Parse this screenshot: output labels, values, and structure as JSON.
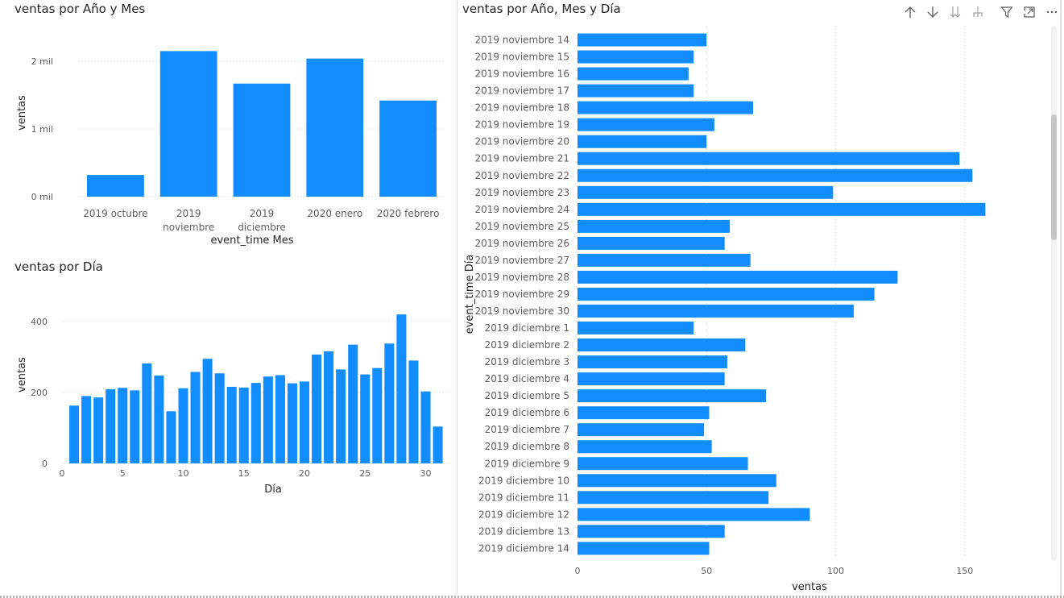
{
  "toolbar": {
    "icons": [
      "arrow-up-icon",
      "arrow-down-icon",
      "double-arrow-down-icon",
      "expand-hierarchy-icon",
      "filter-icon",
      "focus-mode-icon",
      "more-options-icon"
    ]
  },
  "colors": {
    "bar": "#118dff",
    "grid": "#d9d9d9",
    "text": "#252423",
    "axis_text": "#605e5c"
  },
  "chart_data": [
    {
      "type": "bar",
      "title": "ventas por Año y Mes",
      "categories": [
        "2019 octubre",
        "2019 noviembre",
        "2019 diciembre",
        "2020 enero",
        "2020 febrero"
      ],
      "category_lines": [
        [
          "2019 octubre"
        ],
        [
          "2019",
          "noviembre"
        ],
        [
          "2019",
          "diciembre"
        ],
        [
          "2020 enero"
        ],
        [
          "2020 febrero"
        ]
      ],
      "values": [
        320,
        2150,
        1670,
        2040,
        1420
      ],
      "xlabel": "event_time Mes",
      "ylabel": "ventas",
      "ylim": [
        0,
        2000
      ],
      "yticks": [
        0,
        1000,
        2000
      ],
      "ytick_labels": [
        "0 mil",
        "1 mil",
        "2 mil"
      ],
      "grid": true
    },
    {
      "type": "bar",
      "title": "ventas por Día",
      "x": [
        1,
        2,
        3,
        4,
        5,
        6,
        7,
        8,
        9,
        10,
        11,
        12,
        13,
        14,
        15,
        16,
        17,
        18,
        19,
        20,
        21,
        22,
        23,
        24,
        25,
        26,
        27,
        28,
        29,
        30,
        31
      ],
      "values": [
        163,
        190,
        186,
        209,
        213,
        206,
        282,
        248,
        147,
        212,
        258,
        295,
        254,
        216,
        214,
        227,
        245,
        249,
        226,
        231,
        307,
        316,
        265,
        335,
        251,
        269,
        338,
        420,
        290,
        203,
        104
      ],
      "xlabel": "Día",
      "ylabel": "ventas",
      "xticks": [
        0,
        5,
        10,
        15,
        20,
        25,
        30
      ],
      "yticks": [
        0,
        200,
        400
      ],
      "grid": true
    },
    {
      "type": "bar",
      "orientation": "horizontal",
      "title": "ventas por Año, Mes y Día",
      "categories": [
        "2019 noviembre 14",
        "2019 noviembre 15",
        "2019 noviembre 16",
        "2019 noviembre 17",
        "2019 noviembre 18",
        "2019 noviembre 19",
        "2019 noviembre 20",
        "2019 noviembre 21",
        "2019 noviembre 22",
        "2019 noviembre 23",
        "2019 noviembre 24",
        "2019 noviembre 25",
        "2019 noviembre 26",
        "2019 noviembre 27",
        "2019 noviembre 28",
        "2019 noviembre 29",
        "2019 noviembre 30",
        "2019 diciembre 1",
        "2019 diciembre 2",
        "2019 diciembre 3",
        "2019 diciembre 4",
        "2019 diciembre 5",
        "2019 diciembre 6",
        "2019 diciembre 7",
        "2019 diciembre 8",
        "2019 diciembre 9",
        "2019 diciembre 10",
        "2019 diciembre 11",
        "2019 diciembre 12",
        "2019 diciembre 13",
        "2019 diciembre 14"
      ],
      "values": [
        50,
        45,
        43,
        45,
        68,
        53,
        50,
        148,
        153,
        99,
        158,
        59,
        57,
        67,
        124,
        115,
        107,
        45,
        65,
        58,
        57,
        73,
        51,
        49,
        52,
        66,
        77,
        74,
        90,
        57,
        51
      ],
      "xlabel": "ventas",
      "ylabel": "event_time Día",
      "xticks": [
        0,
        50,
        100,
        150
      ],
      "grid": true
    }
  ]
}
